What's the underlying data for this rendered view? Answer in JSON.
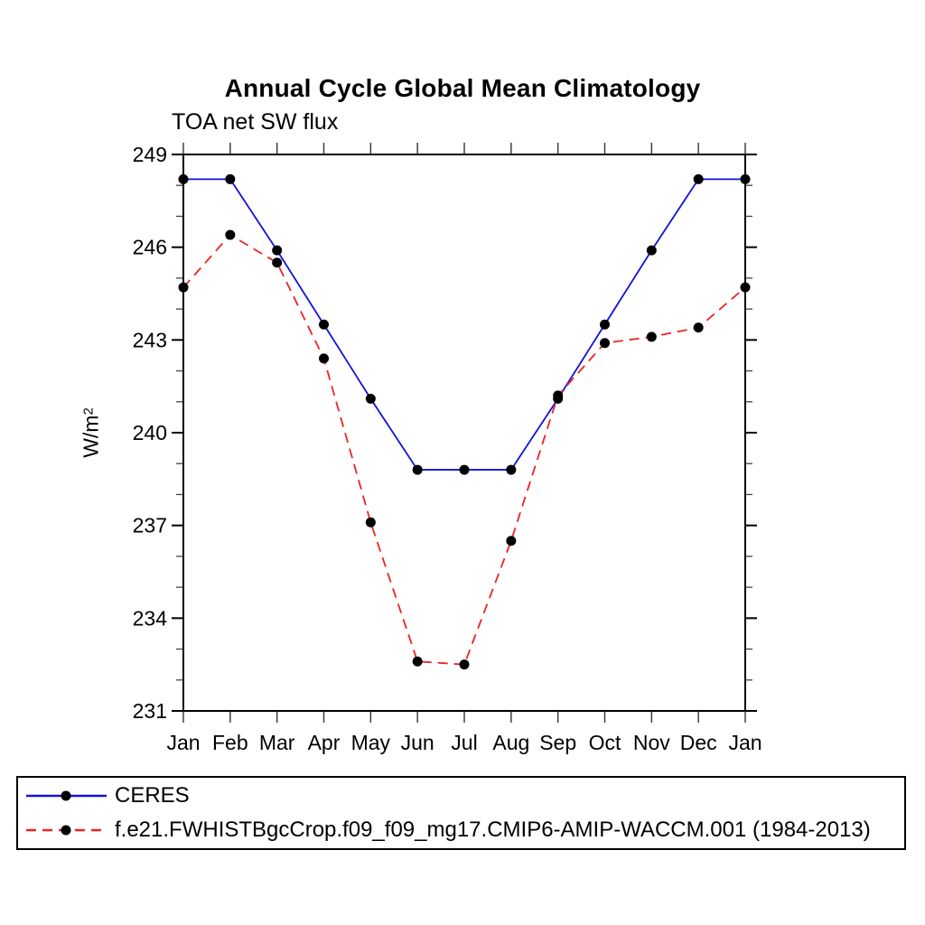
{
  "chart_data": {
    "type": "line",
    "title": "Annual Cycle Global Mean Climatology",
    "subtitle": "TOA net SW flux",
    "ylabel_base": "W/m",
    "ylabel_sup": "2",
    "categories": [
      "Jan",
      "Feb",
      "Mar",
      "Apr",
      "May",
      "Jun",
      "Jul",
      "Aug",
      "Sep",
      "Oct",
      "Nov",
      "Dec",
      "Jan"
    ],
    "ylim": [
      231,
      249
    ],
    "ytick_major_step": 3,
    "ytick_minor_step": 1,
    "grid": "off",
    "legend_position": "bottom-left-box",
    "marker": {
      "shape": "filled-circle",
      "color": "#000000",
      "radius": 5.5
    },
    "series": [
      {
        "name": "CERES",
        "color": "#1212dd",
        "line_style": "solid",
        "dash": "",
        "values": [
          248.2,
          248.2,
          245.9,
          243.5,
          241.1,
          238.8,
          238.8,
          238.8,
          241.1,
          243.5,
          245.9,
          248.2,
          248.2
        ]
      },
      {
        "name": "f.e21.FWHISTBgcCrop.f09_f09_mg17.CMIP6-AMIP-WACCM.001 (1984-2013)",
        "color": "#ee2222",
        "line_style": "dashed",
        "dash": "11 7",
        "values": [
          244.7,
          246.4,
          245.5,
          242.4,
          237.1,
          232.6,
          232.5,
          236.5,
          241.2,
          242.9,
          243.1,
          243.4,
          244.7
        ]
      }
    ]
  }
}
